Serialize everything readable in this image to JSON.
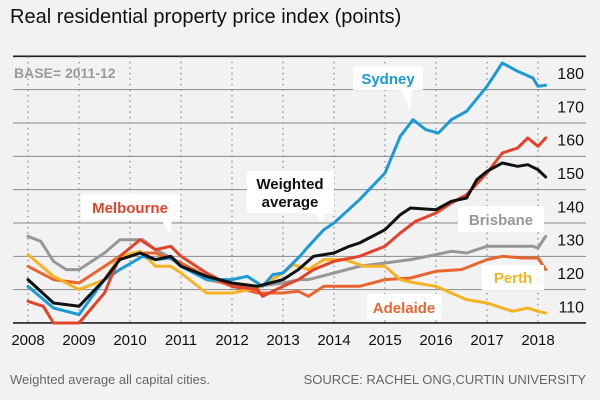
{
  "chart_data": {
    "type": "line",
    "title": "Real residential property price index (points)",
    "annotation": "BASE= 2011-12",
    "footnote": "Weighted average all capital cities.",
    "source": "SOURCE: RACHEL ONG,CURTIN UNIVERSITY",
    "xlabel": "",
    "ylabel": "",
    "xlim": [
      2008,
      2018.2
    ],
    "ylim": [
      105,
      185
    ],
    "x_ticks": [
      "2008",
      "2009",
      "2010",
      "2011",
      "2012",
      "2013",
      "2014",
      "2015",
      "2016",
      "2017",
      "2018"
    ],
    "y_ticks": [
      "110",
      "120",
      "130",
      "140",
      "150",
      "160",
      "170",
      "180"
    ],
    "grid": true,
    "series": [
      {
        "name": "Brisbane",
        "color": "#979797",
        "points": [
          [
            2008,
            131
          ],
          [
            2008.25,
            129.5
          ],
          [
            2008.5,
            123.5
          ],
          [
            2008.75,
            121
          ],
          [
            2009,
            121
          ],
          [
            2009.5,
            126
          ],
          [
            2009.8,
            130
          ],
          [
            2010.1,
            130
          ],
          [
            2010.25,
            130
          ],
          [
            2010.5,
            127
          ],
          [
            2011,
            123
          ],
          [
            2011.5,
            118
          ],
          [
            2012,
            116.5
          ],
          [
            2012.5,
            116
          ],
          [
            2013,
            117
          ],
          [
            2013.33,
            118
          ],
          [
            2013.5,
            118
          ],
          [
            2014,
            120
          ],
          [
            2014.5,
            122
          ],
          [
            2015,
            123
          ],
          [
            2015.5,
            124
          ],
          [
            2016,
            125.5
          ],
          [
            2016.3,
            126.5
          ],
          [
            2016.6,
            126
          ],
          [
            2017,
            128
          ],
          [
            2017.5,
            128
          ],
          [
            2017.9,
            128
          ],
          [
            2018,
            127.5
          ],
          [
            2018.15,
            131
          ]
        ]
      },
      {
        "name": "Adelaide",
        "color": "#e8652e",
        "points": [
          [
            2008,
            122
          ],
          [
            2008.5,
            118
          ],
          [
            2009,
            117
          ],
          [
            2009.3,
            120
          ],
          [
            2009.8,
            125
          ],
          [
            2010.2,
            126
          ],
          [
            2010.5,
            126
          ],
          [
            2011,
            123
          ],
          [
            2011.5,
            119
          ],
          [
            2012,
            116
          ],
          [
            2012.5,
            114
          ],
          [
            2013,
            114
          ],
          [
            2013.3,
            114.5
          ],
          [
            2013.5,
            113
          ],
          [
            2013.8,
            116
          ],
          [
            2014,
            116
          ],
          [
            2014.5,
            116
          ],
          [
            2015,
            118
          ],
          [
            2015.5,
            118.5
          ],
          [
            2016,
            120.5
          ],
          [
            2016.5,
            121
          ],
          [
            2017,
            124
          ],
          [
            2017.3,
            125
          ],
          [
            2017.7,
            124.5
          ],
          [
            2018,
            124.5
          ],
          [
            2018.15,
            121
          ]
        ]
      },
      {
        "name": "Perth",
        "color": "#f5b324",
        "points": [
          [
            2008,
            125.5
          ],
          [
            2008.5,
            119
          ],
          [
            2009,
            115
          ],
          [
            2009.5,
            118
          ],
          [
            2009.8,
            125
          ],
          [
            2010.2,
            126.5
          ],
          [
            2010.5,
            122
          ],
          [
            2010.8,
            122
          ],
          [
            2011,
            120
          ],
          [
            2011.5,
            114
          ],
          [
            2012,
            114
          ],
          [
            2012.5,
            115.5
          ],
          [
            2013,
            120
          ],
          [
            2013.2,
            122.5
          ],
          [
            2013.5,
            121
          ],
          [
            2013.8,
            124
          ],
          [
            2014.2,
            124
          ],
          [
            2014.6,
            122
          ],
          [
            2015,
            122
          ],
          [
            2015.3,
            118
          ],
          [
            2015.6,
            117
          ],
          [
            2016,
            116
          ],
          [
            2016.3,
            114
          ],
          [
            2016.6,
            112
          ],
          [
            2017,
            111
          ],
          [
            2017.5,
            108.5
          ],
          [
            2017.8,
            109.5
          ],
          [
            2018,
            108.5
          ],
          [
            2018.15,
            108
          ]
        ]
      },
      {
        "name": "Sydney",
        "color": "#1b9ad6",
        "points": [
          [
            2008,
            116
          ],
          [
            2008.5,
            109.5
          ],
          [
            2009,
            107.5
          ],
          [
            2009.5,
            118
          ],
          [
            2009.8,
            121
          ],
          [
            2010.25,
            125
          ],
          [
            2010.5,
            124
          ],
          [
            2010.8,
            124.5
          ],
          [
            2011,
            122
          ],
          [
            2011.5,
            118
          ],
          [
            2012,
            118
          ],
          [
            2012.3,
            119
          ],
          [
            2012.6,
            116
          ],
          [
            2012.8,
            119.5
          ],
          [
            2013,
            120
          ],
          [
            2013.33,
            125
          ],
          [
            2013.5,
            128
          ],
          [
            2013.8,
            133
          ],
          [
            2014,
            135
          ],
          [
            2014.5,
            142
          ],
          [
            2015,
            150
          ],
          [
            2015.3,
            161
          ],
          [
            2015.55,
            166
          ],
          [
            2015.8,
            163
          ],
          [
            2016.05,
            162
          ],
          [
            2016.3,
            166
          ],
          [
            2016.6,
            168.5
          ],
          [
            2017,
            176
          ],
          [
            2017.3,
            183
          ],
          [
            2017.6,
            180.5
          ],
          [
            2017.9,
            178.5
          ],
          [
            2018,
            176
          ],
          [
            2018.15,
            176.3
          ]
        ]
      },
      {
        "name": "Melbourne",
        "color": "#e2432a",
        "points": [
          [
            2008,
            111.5
          ],
          [
            2008.3,
            110
          ],
          [
            2008.5,
            105
          ],
          [
            2009,
            105
          ],
          [
            2009.5,
            114
          ],
          [
            2009.8,
            125
          ],
          [
            2010.2,
            130
          ],
          [
            2010.5,
            127
          ],
          [
            2010.8,
            128
          ],
          [
            2011,
            125
          ],
          [
            2011.5,
            120
          ],
          [
            2012,
            116
          ],
          [
            2012.5,
            115
          ],
          [
            2012.6,
            113
          ],
          [
            2013,
            116
          ],
          [
            2013.3,
            118
          ],
          [
            2013.6,
            121
          ],
          [
            2014,
            123.5
          ],
          [
            2014.5,
            125
          ],
          [
            2015,
            128
          ],
          [
            2015.3,
            132
          ],
          [
            2015.6,
            135.5
          ],
          [
            2016,
            138
          ],
          [
            2016.3,
            141
          ],
          [
            2016.6,
            143.5
          ],
          [
            2017,
            150
          ],
          [
            2017.3,
            156
          ],
          [
            2017.6,
            157.5
          ],
          [
            2017.8,
            160.5
          ],
          [
            2018,
            158
          ],
          [
            2018.15,
            160.5
          ]
        ]
      },
      {
        "name": "Weighted average",
        "color": "#111111",
        "points": [
          [
            2008,
            118
          ],
          [
            2008.5,
            111
          ],
          [
            2009,
            110
          ],
          [
            2009.5,
            118
          ],
          [
            2009.8,
            124
          ],
          [
            2010.2,
            126
          ],
          [
            2010.5,
            124
          ],
          [
            2010.8,
            125
          ],
          [
            2011,
            122
          ],
          [
            2011.5,
            119
          ],
          [
            2012,
            117
          ],
          [
            2012.5,
            116
          ],
          [
            2013,
            118
          ],
          [
            2013.3,
            121
          ],
          [
            2013.6,
            125
          ],
          [
            2014,
            126
          ],
          [
            2014.3,
            128
          ],
          [
            2014.5,
            129
          ],
          [
            2015,
            133
          ],
          [
            2015.3,
            137.5
          ],
          [
            2015.5,
            139.5
          ],
          [
            2016,
            139
          ],
          [
            2016.3,
            141.5
          ],
          [
            2016.6,
            142.5
          ],
          [
            2016.8,
            148
          ],
          [
            2017,
            150.5
          ],
          [
            2017.3,
            153
          ],
          [
            2017.6,
            152
          ],
          [
            2017.8,
            152.5
          ],
          [
            2018,
            151
          ],
          [
            2018.15,
            148.8
          ]
        ]
      }
    ],
    "series_labels": {
      "sydney": "Sydney",
      "melbourne": "Melbourne",
      "weighted_line1": "Weighted",
      "weighted_line2": "average",
      "brisbane": "Brisbane",
      "perth": "Perth",
      "adelaide": "Adelaide"
    }
  }
}
